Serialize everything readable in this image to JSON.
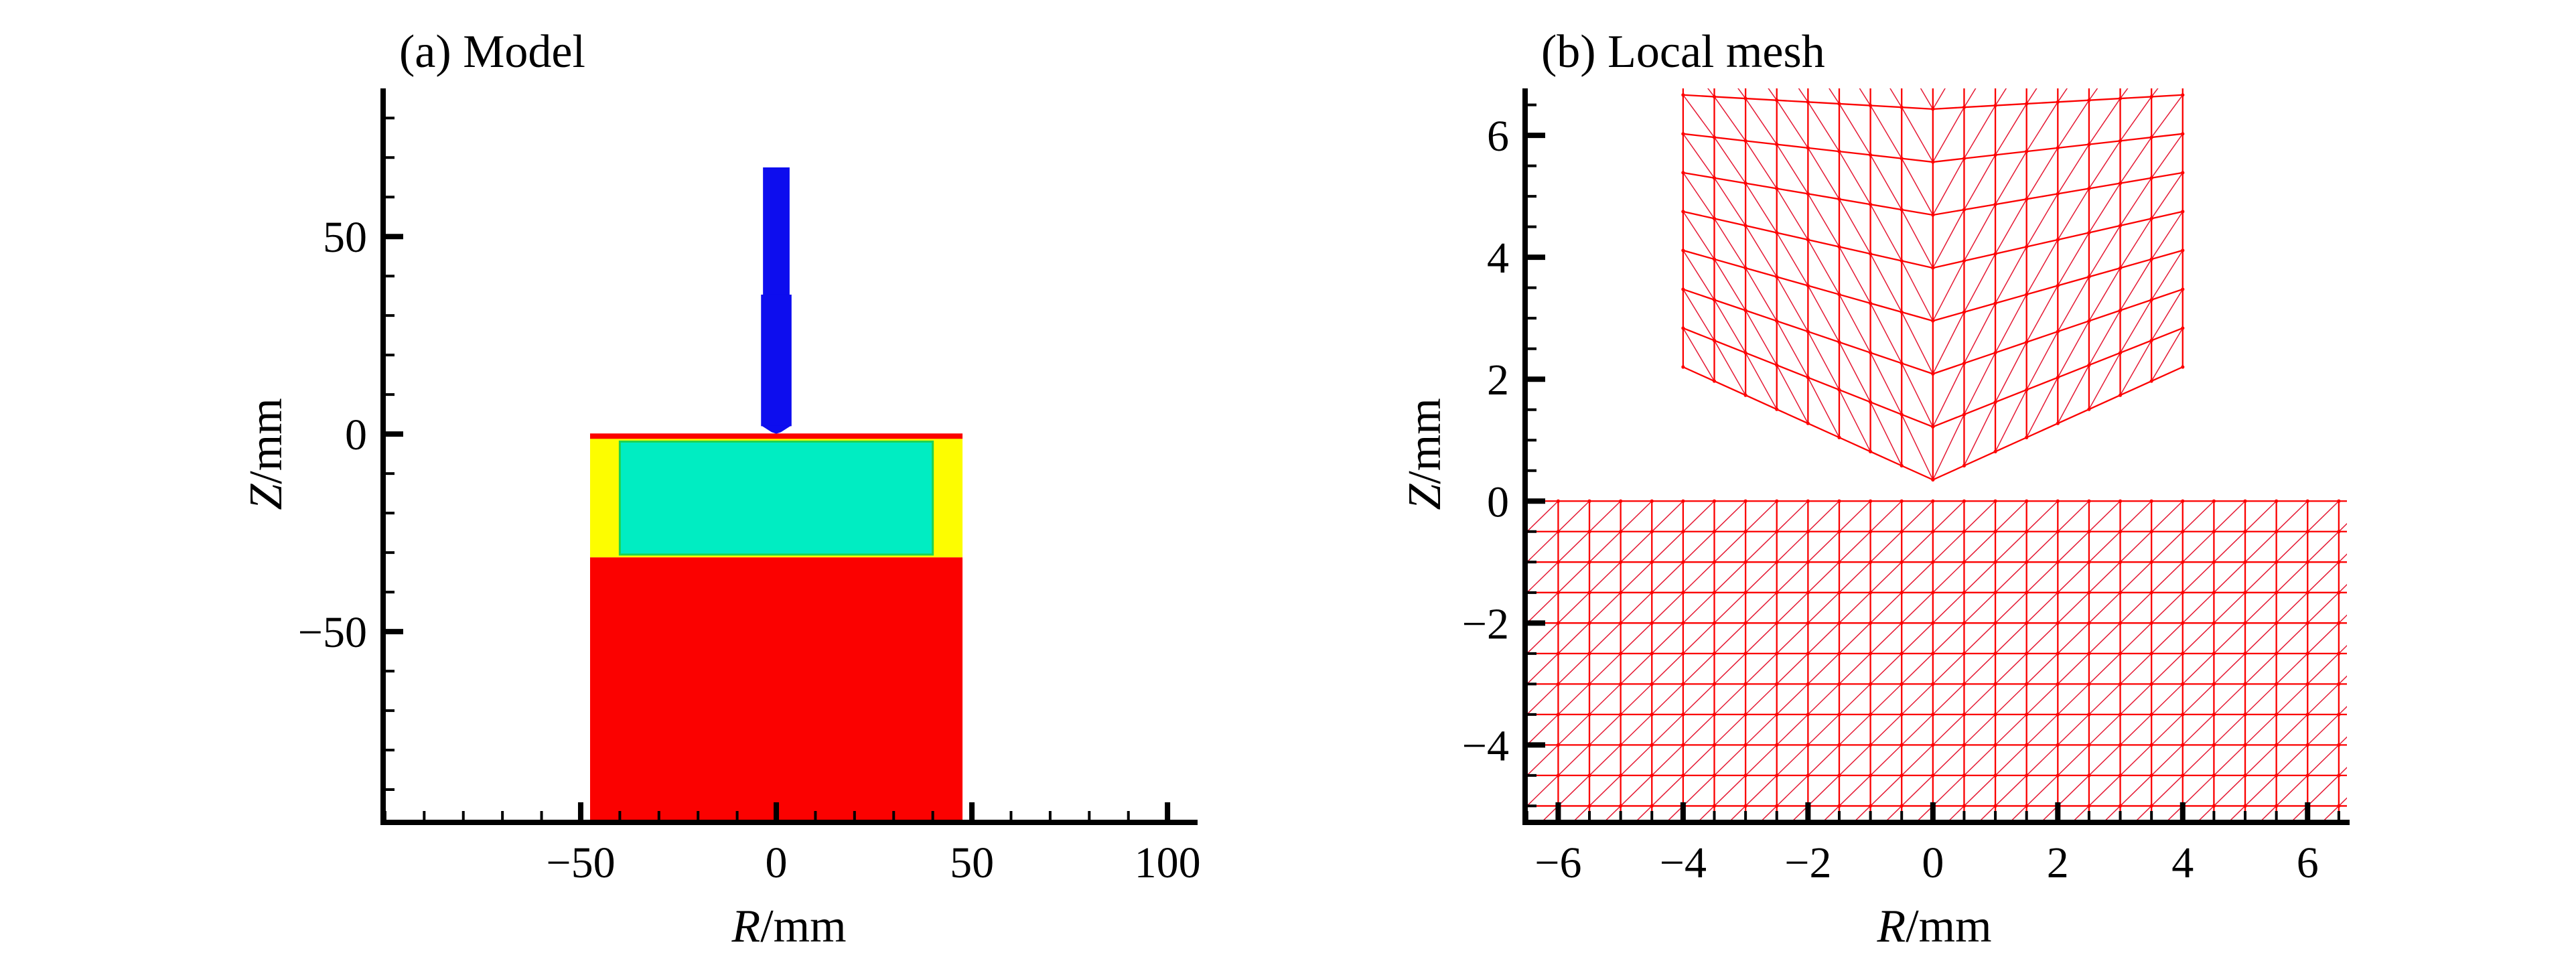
{
  "figure": {
    "background": "#ffffff",
    "panel_count": 2
  },
  "chart_data": [
    {
      "type": "area",
      "kind": "axisymmetric-model-cross-section",
      "title": "(a) Model",
      "xlabel_var": "R",
      "ylabel_var": "Z",
      "label_unit": "/mm",
      "xlim": [
        -100.5,
        107
      ],
      "ylim": [
        -98.3,
        87.5
      ],
      "xticks_major": [
        -50,
        0,
        50,
        100
      ],
      "xtick_minor_step": 10,
      "yticks_major": [
        -50,
        0,
        50
      ],
      "ytick_minor_step": 10,
      "grid": false,
      "legend": "none",
      "regions": [
        {
          "name": "specimen-base",
          "color": "#fb0100",
          "rect": {
            "r": [
              -47.6,
              47.6
            ],
            "z": [
              -98.3,
              -31.2
            ]
          }
        },
        {
          "name": "crucible-wall",
          "color": "#fdfd00",
          "rect": {
            "r": [
              -47.6,
              47.6
            ],
            "z": [
              -31.2,
              -1.0
            ]
          }
        },
        {
          "name": "inner-charge",
          "color": "#00edc2",
          "edge_color": "#1fd34f",
          "rect": {
            "r": [
              -40.0,
              40.0
            ],
            "z": [
              -30.5,
              -1.9
            ]
          }
        },
        {
          "name": "top-surface-layer",
          "color": "#fb0100",
          "rect": {
            "r": [
              -47.6,
              47.6
            ],
            "z": [
              -1.2,
              0.15
            ]
          }
        },
        {
          "name": "indenter-shaft-upper",
          "color": "#0d0dee",
          "rect": {
            "r": [
              -3.4,
              3.4
            ],
            "z": [
              35.0,
              67.5
            ]
          }
        },
        {
          "name": "indenter-shaft-lower",
          "color": "#0d0dee",
          "rect": {
            "r": [
              -3.9,
              3.9
            ],
            "z": [
              2.0,
              35.3
            ]
          }
        },
        {
          "name": "indenter-tip",
          "color": "#0d0dee",
          "polygon": [
            [
              -3.9,
              2.2
            ],
            [
              3.9,
              2.2
            ],
            [
              1.2,
              0.5
            ],
            [
              0.0,
              0.08
            ],
            [
              -1.2,
              0.5
            ]
          ]
        }
      ]
    },
    {
      "type": "line",
      "kind": "finite-element-local-mesh",
      "title": "(b) Local mesh",
      "xlabel_var": "R",
      "ylabel_var": "Z",
      "label_unit": "/mm",
      "xlim": [
        -6.53,
        6.63
      ],
      "ylim": [
        -5.27,
        6.77
      ],
      "xticks_major": [
        -6,
        -4,
        -2,
        0,
        2,
        4,
        6
      ],
      "xtick_minor_step": 0.5,
      "yticks_major": [
        -4,
        -2,
        0,
        2,
        4,
        6
      ],
      "ytick_minor_step": 0.5,
      "grid": false,
      "legend": "none",
      "mesh_grid_color": "#fb0000",
      "mesh_diag_color": "#e51b35",
      "mesh_node_color": "#ff0000",
      "specimen_mesh": {
        "r_min": -6.53,
        "r_max": 6.63,
        "z_top": 0,
        "z_bottom": -5.27,
        "cell_size": 0.5,
        "diagonal": "bottom-left-to-top-right"
      },
      "indenter_mesh": {
        "apex_r": 0.0,
        "apex_z": 0.35,
        "half_width": 4.0,
        "side_bottom_z": 2.2,
        "virtual_top_z": 7.3,
        "rows": 8,
        "cols_per_side": 8,
        "diagonals": "mirrored-upward-outward-from-centerline"
      }
    }
  ]
}
